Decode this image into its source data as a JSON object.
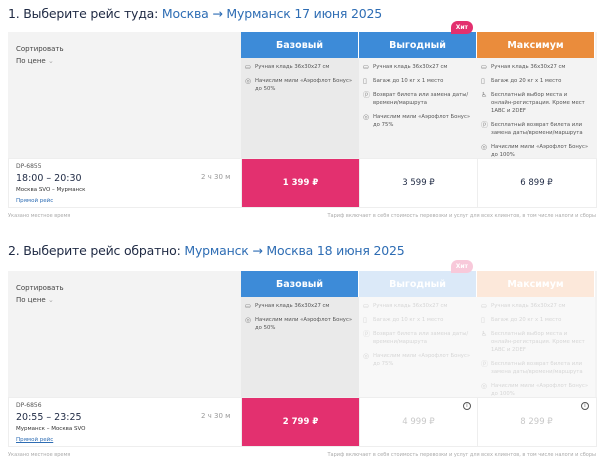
{
  "sections": [
    {
      "title_prefix": "1. Выберите рейс туда:",
      "route": "Москва →  Мурманск 17 июня 2025",
      "sort_label": "Сортировать",
      "sort_value": "По цене",
      "fares": [
        {
          "name": "Базовый",
          "color": "#3d8bd8",
          "features": [
            "Ручная кладь 36х30х27 см",
            "Начислим мили «Аэрофлот Бонус» до 50%"
          ]
        },
        {
          "name": "Выгодный",
          "color": "#3d8bd8",
          "badge": "Хит",
          "features": [
            "Ручная кладь 36х30х27 см",
            "Багаж до 10 кг х 1 место",
            "Возврат билета или замена даты/времени/маршрута",
            "Начислим мили «Аэрофлот Бонус» до 75%"
          ]
        },
        {
          "name": "Максимум",
          "color": "#ea8c3c",
          "features": [
            "Ручная кладь 36х30х27 см",
            "Багаж до 20 кг х 1 место",
            "Бесплатный выбор места и онлайн-регистрация. Кроме мест 1ABC и 2DEF",
            "Бесплатный возврат билета или замена даты/времени/маршрута",
            "Начислим мили «Аэрофлот Бонус» до 100%"
          ]
        }
      ],
      "flight": {
        "number": "DP-6855",
        "times": "18:00 – 20:30",
        "route": "Москва SVO – Мурманск",
        "type": "Прямой рейс",
        "duration": "2 ч 30 м",
        "prices": [
          "1 399 ₽",
          "3 599 ₽",
          "6 899 ₽"
        ]
      },
      "note_left": "Указано местное время",
      "note_right": "Тариф включает в себя стоимость перевозки и услуг для всех клиентов, в том числе налоги и сборы"
    },
    {
      "title_prefix": "2. Выберите рейс обратно:",
      "route": "Мурманск →  Москва 18 июня 2025",
      "sort_label": "Сортировать",
      "sort_value": "По цене",
      "fares": [
        {
          "name": "Базовый",
          "color": "#3d8bd8",
          "features": [
            "Ручная кладь 36х30х27 см",
            "Начислим мили «Аэрофлот Бонус» до 50%"
          ]
        },
        {
          "name": "Выгодный",
          "color": "#dbe9f8",
          "badge": "Хит",
          "features": [
            "Ручная кладь 36х30х27 см",
            "Багаж до 10 кг х 1 место",
            "Возврат билета или замена даты/времени/маршрута",
            "Начислим мили «Аэрофлот Бонус» до 75%"
          ]
        },
        {
          "name": "Максимум",
          "color": "#fce8da",
          "features": [
            "Ручная кладь 36х30х27 см",
            "Багаж до 20 кг х 1 место",
            "Бесплатный выбор места и онлайн-регистрация. Кроме мест 1ABC и 2DEF",
            "Бесплатный возврат билета или замена даты/времени/маршрута",
            "Начислим мили «Аэрофлот Бонус» до 100%"
          ]
        }
      ],
      "flight": {
        "number": "DP-6856",
        "times": "20:55 – 23:25",
        "route": "Мурманск – Москва SVO",
        "type": "Прямой рейс",
        "duration": "2 ч 30 м",
        "prices": [
          "2 799 ₽",
          "4 999 ₽",
          "8 299 ₽"
        ]
      },
      "note_left": "Указано местное время",
      "note_right": "Тариф включает в себя стоимость перевозки и услуг для всех клиентов, в том числе налоги и сборы"
    }
  ],
  "feature_icons": [
    "bag-icon",
    "luggage-icon",
    "seat-icon",
    "refund-icon",
    "miles-icon"
  ]
}
